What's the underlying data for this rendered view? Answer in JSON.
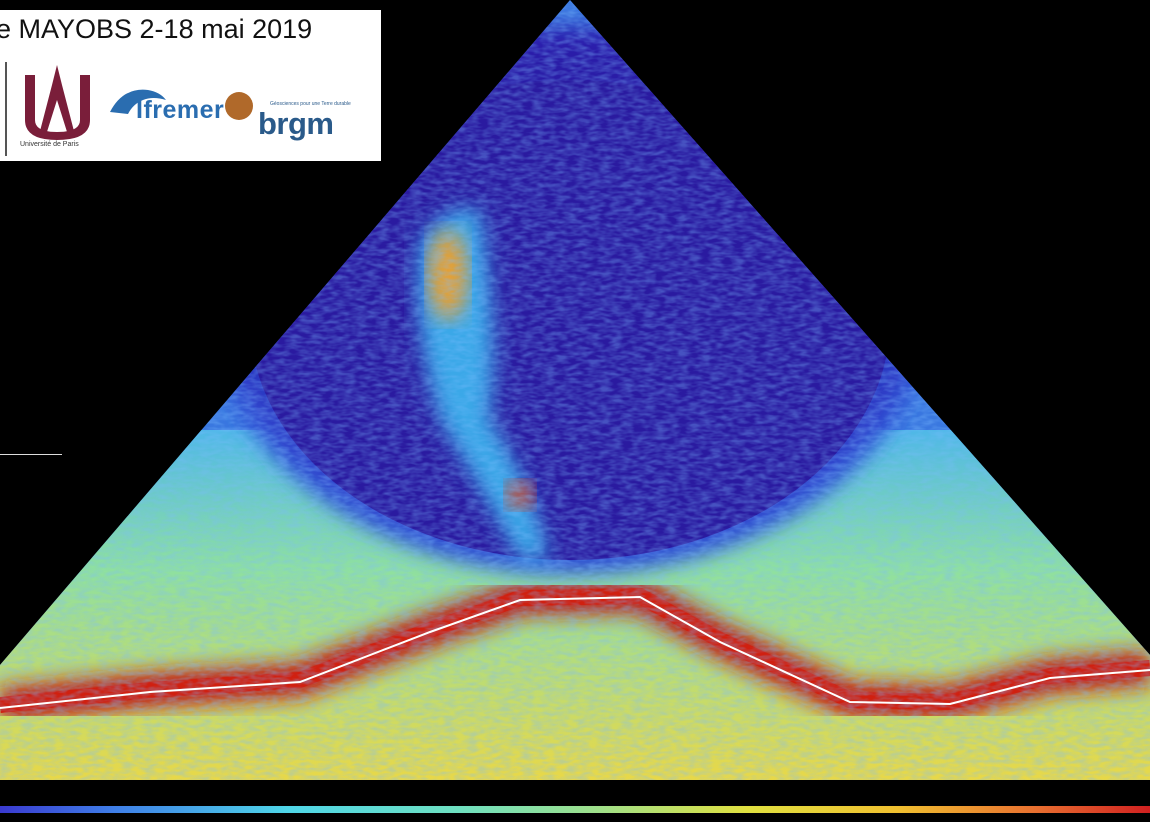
{
  "header": {
    "title": "e MAYOBS 2-18 mai 2019",
    "logos": {
      "universite": {
        "name": "Université de Paris",
        "color": "#7a1e3a"
      },
      "ifremer": {
        "name": "Ifremer",
        "color": "#2a6db0"
      },
      "brgm": {
        "name": "brgm",
        "tagline": "Géosciences pour une Terre durable",
        "color": "#2a5a8a",
        "mark_color": "#b0692a"
      }
    }
  },
  "sonar_image": {
    "colormap": [
      "#2a1aa0",
      "#3f7fe8",
      "#4fd6e8",
      "#e0e040",
      "#f0a030",
      "#c01010"
    ],
    "seafloor_line_color": "#ffffff"
  },
  "colorbar": {
    "colormap": [
      "#3a3ad0",
      "#4fd6e8",
      "#9fe08a",
      "#e0e040",
      "#d02020"
    ]
  }
}
